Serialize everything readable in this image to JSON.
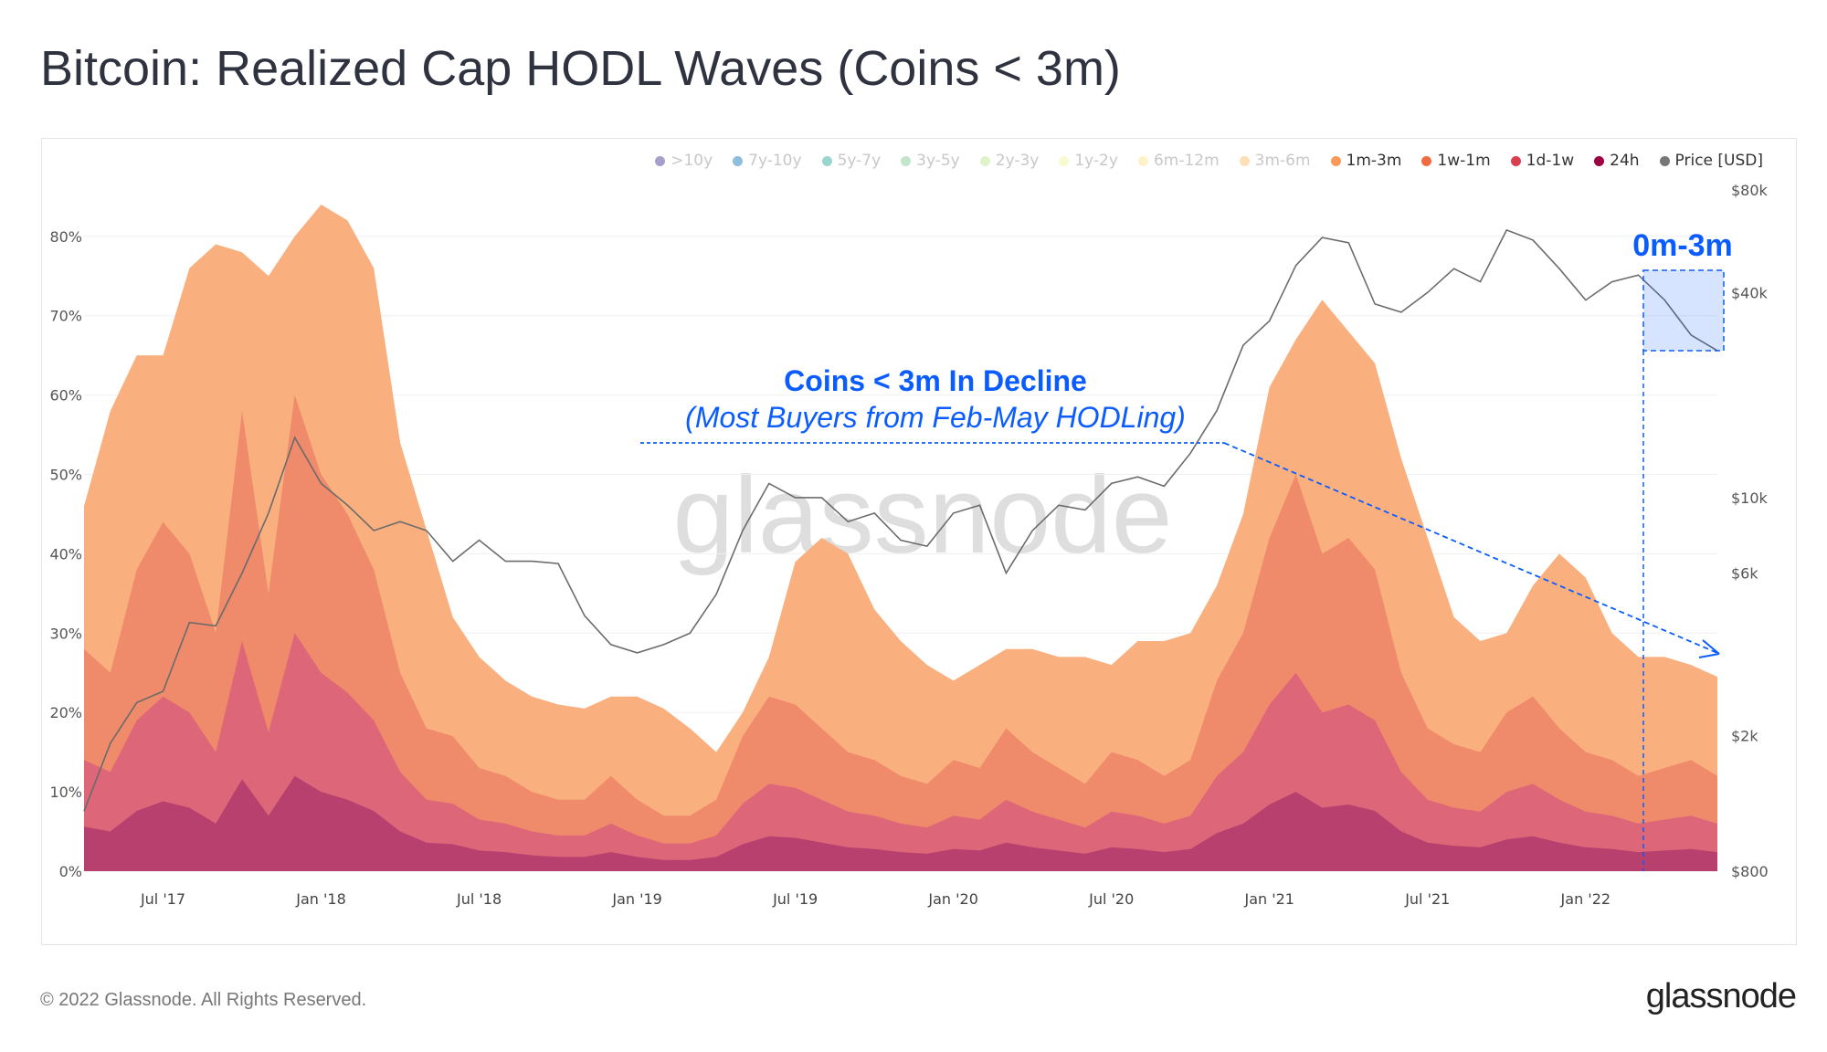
{
  "title": "Bitcoin: Realized Cap HODL Waves (Coins < 3m)",
  "footer": "© 2022 Glassnode. All Rights Reserved.",
  "logo": "glassnode",
  "watermark": "glassnode",
  "legend": [
    {
      "label": ">10y",
      "color": "#5e4fa2",
      "active": false
    },
    {
      "label": "7y-10y",
      "color": "#3288bd",
      "active": false
    },
    {
      "label": "5y-7y",
      "color": "#45b5aa",
      "active": false
    },
    {
      "label": "3y-5y",
      "color": "#8fd19e",
      "active": false
    },
    {
      "label": "2y-3y",
      "color": "#c7e99b",
      "active": false
    },
    {
      "label": "1y-2y",
      "color": "#f1f7a8",
      "active": false
    },
    {
      "label": "6m-12m",
      "color": "#fde89a",
      "active": false
    },
    {
      "label": "3m-6m",
      "color": "#fdc67b",
      "active": false
    },
    {
      "label": "1m-3m",
      "color": "#f99a5a",
      "active": true
    },
    {
      "label": "1w-1m",
      "color": "#f06a42",
      "active": true
    },
    {
      "label": "1d-1w",
      "color": "#d9404f",
      "active": true
    },
    {
      "label": "24h",
      "color": "#9e0142",
      "active": true
    },
    {
      "label": "Price [USD]",
      "color": "#777777",
      "active": true
    }
  ],
  "annotations": {
    "decline_title": "Coins < 3m In Decline",
    "decline_subtitle": "(Most Buyers from Feb-May HODLing)",
    "box_label": "0m-3m",
    "color": "#0b5cff"
  },
  "chart_data": {
    "type": "area",
    "stacked": true,
    "x": [
      "2017-04",
      "2017-05",
      "2017-06",
      "2017-07",
      "2017-08",
      "2017-09",
      "2017-10",
      "2017-11",
      "2017-12",
      "2018-01",
      "2018-02",
      "2018-03",
      "2018-04",
      "2018-05",
      "2018-06",
      "2018-07",
      "2018-08",
      "2018-09",
      "2018-10",
      "2018-11",
      "2018-12",
      "2019-01",
      "2019-02",
      "2019-03",
      "2019-04",
      "2019-05",
      "2019-06",
      "2019-07",
      "2019-08",
      "2019-09",
      "2019-10",
      "2019-11",
      "2019-12",
      "2020-01",
      "2020-02",
      "2020-03",
      "2020-04",
      "2020-05",
      "2020-06",
      "2020-07",
      "2020-08",
      "2020-09",
      "2020-10",
      "2020-11",
      "2020-12",
      "2021-01",
      "2021-02",
      "2021-03",
      "2021-04",
      "2021-05",
      "2021-06",
      "2021-07",
      "2021-08",
      "2021-09",
      "2021-10",
      "2021-11",
      "2021-12",
      "2022-01",
      "2022-02",
      "2022-03",
      "2022-04",
      "2022-05",
      "2022-06"
    ],
    "x_ticks": [
      "Jul '17",
      "Jan '18",
      "Jul '18",
      "Jan '19",
      "Jul '19",
      "Jan '20",
      "Jul '20",
      "Jan '21",
      "Jul '21",
      "Jan '22"
    ],
    "x_tick_dates": [
      "2017-07",
      "2018-01",
      "2018-07",
      "2019-01",
      "2019-07",
      "2020-01",
      "2020-07",
      "2021-01",
      "2021-07",
      "2022-01"
    ],
    "y_ticks": [
      "0%",
      "10%",
      "20%",
      "30%",
      "40%",
      "50%",
      "60%",
      "70%",
      "80%"
    ],
    "ylim": [
      0,
      85
    ],
    "y2_scale": "log",
    "y2_ticks": [
      "$800",
      "$2k",
      "$6k",
      "$10k",
      "$40k",
      "$80k"
    ],
    "y2_tick_values": [
      800,
      2000,
      6000,
      10000,
      40000,
      80000
    ],
    "y2lim": [
      800,
      80000
    ],
    "grid": true,
    "legend_position": "top-right",
    "series": [
      {
        "name": "24h",
        "color": "#b7406f",
        "values": [
          5.6,
          5,
          7.6,
          8.8,
          8,
          6,
          11.6,
          7,
          12,
          10,
          9,
          7.6,
          5,
          3.6,
          3.4,
          2.6,
          2.4,
          2,
          1.8,
          1.8,
          2.4,
          1.8,
          1.4,
          1.4,
          1.8,
          3.4,
          4.4,
          4.2,
          3.6,
          3,
          2.8,
          2.4,
          2.2,
          2.8,
          2.6,
          3.6,
          3,
          2.6,
          2.2,
          3,
          2.8,
          2.4,
          2.8,
          4.8,
          6,
          8.4,
          10,
          8,
          8.4,
          7.6,
          5,
          3.6,
          3.2,
          3,
          4,
          4.4,
          3.6,
          3,
          2.8,
          2.4,
          2.6,
          2.8,
          2.4
        ]
      },
      {
        "name": "1d-1w",
        "color": "#dd6679",
        "values": [
          8.4,
          7.5,
          11.4,
          13.2,
          12,
          9,
          17.4,
          10.5,
          18,
          15,
          13.5,
          11.4,
          7.5,
          5.4,
          5.1,
          3.9,
          3.6,
          3,
          2.7,
          2.7,
          3.6,
          2.7,
          2.1,
          2.1,
          2.7,
          5.1,
          6.6,
          6.3,
          5.4,
          4.5,
          4.2,
          3.6,
          3.3,
          4.2,
          3.9,
          5.4,
          4.5,
          3.9,
          3.3,
          4.5,
          4.2,
          3.6,
          4.2,
          7.2,
          9,
          12.6,
          15,
          12,
          12.6,
          11.4,
          7.5,
          5.4,
          4.8,
          4.5,
          6,
          6.6,
          5.4,
          4.5,
          4.2,
          3.6,
          3.9,
          4.2,
          3.6
        ]
      },
      {
        "name": "1w-1m",
        "color": "#ef8a6b",
        "values": [
          14,
          12.5,
          19,
          22,
          20,
          15,
          29,
          17.5,
          30,
          25,
          22.5,
          19,
          12.5,
          9,
          8.5,
          6.5,
          6,
          5,
          4.5,
          4.5,
          6,
          4.5,
          3.5,
          3.5,
          4.5,
          8.5,
          11,
          10.5,
          9,
          7.5,
          7,
          6,
          5.5,
          7,
          6.5,
          9,
          7.5,
          6.5,
          5.5,
          7.5,
          7,
          6,
          7,
          12,
          15,
          21,
          25,
          20,
          21,
          19,
          12.5,
          9,
          8,
          7.5,
          10,
          11,
          9,
          7.5,
          7,
          6,
          6.5,
          7,
          6
        ]
      },
      {
        "name": "1m-3m",
        "color": "#f9b07e",
        "values": [
          18,
          33,
          27,
          21,
          36,
          49,
          20,
          40,
          20,
          34,
          37,
          38,
          29,
          25,
          15,
          14,
          12,
          12,
          12,
          11.5,
          10,
          13,
          13.5,
          11,
          6,
          3,
          5,
          18,
          24,
          25,
          19,
          17,
          15,
          10,
          13,
          10,
          13,
          14,
          16,
          11,
          15,
          17,
          16,
          12,
          15,
          19,
          17,
          32,
          26,
          26,
          27,
          24,
          16,
          14,
          10,
          14,
          22,
          22,
          16,
          15,
          14,
          12,
          12.5
        ]
      }
    ],
    "price": {
      "name": "Price [USD]",
      "color": "#6b6b6b",
      "values": [
        1200,
        1900,
        2500,
        2700,
        4300,
        4200,
        6000,
        9000,
        15000,
        11000,
        9500,
        8000,
        8500,
        8000,
        6500,
        7500,
        6500,
        6500,
        6400,
        4500,
        3700,
        3500,
        3700,
        4000,
        5200,
        8000,
        11000,
        10000,
        10000,
        8500,
        9000,
        7500,
        7200,
        9000,
        9500,
        6000,
        8000,
        9500,
        9200,
        11000,
        11500,
        10800,
        13500,
        18000,
        28000,
        33000,
        48000,
        58000,
        56000,
        37000,
        35000,
        40000,
        47000,
        43000,
        61000,
        57000,
        47000,
        38000,
        43000,
        45000,
        38000,
        30000,
        27000
      ]
    }
  }
}
